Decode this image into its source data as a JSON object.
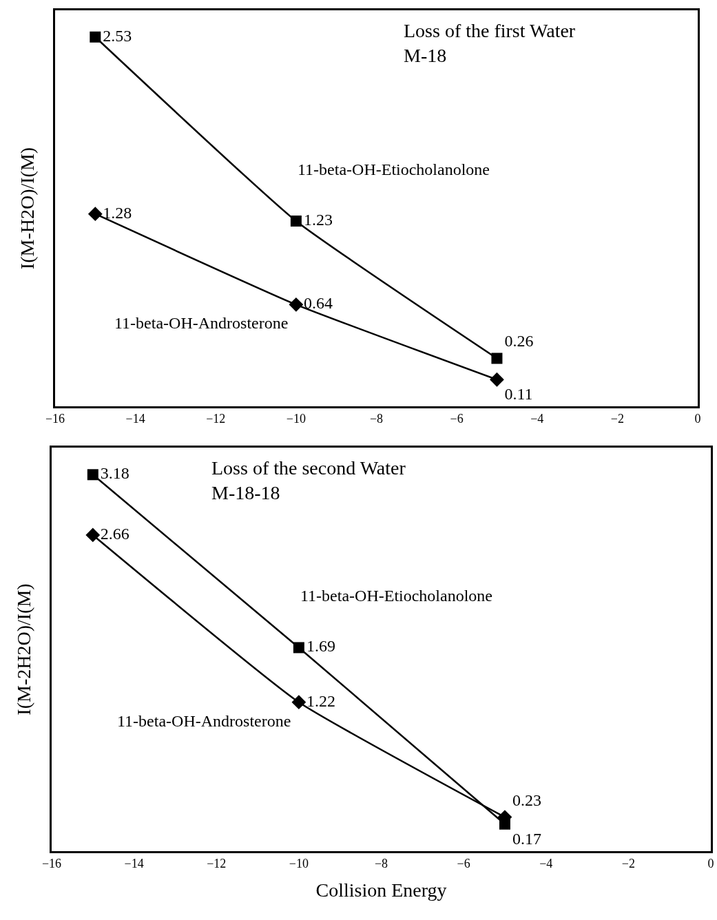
{
  "chart_data": [
    {
      "type": "line",
      "title": "Loss of the first Water",
      "subtitle": "M-18",
      "ylabel": "I(M-H2O)/I(M)",
      "x": [
        -15,
        -10,
        -5
      ],
      "xlim": [
        -16,
        0
      ],
      "xticks": [
        -16,
        -14,
        -12,
        -10,
        -8,
        -6,
        -4,
        -2,
        0
      ],
      "grid": false,
      "legend": false,
      "data_labels": true,
      "series": [
        {
          "name": "11-beta-OH-Etiocholanolone",
          "color": "#000000",
          "marker": "square",
          "values": [
            2.53,
            1.23,
            0.26
          ]
        },
        {
          "name": "11-beta-OH-Androsterone",
          "color": "#000000",
          "marker": "diamond",
          "values": [
            1.28,
            0.64,
            0.11
          ]
        }
      ]
    },
    {
      "type": "line",
      "title": "Loss of the second Water",
      "subtitle": "M-18-18",
      "xlabel": "Collision Energy",
      "ylabel": "I(M-2H2O)/I(M)",
      "x": [
        -15,
        -10,
        -5
      ],
      "xlim": [
        -16,
        0
      ],
      "xticks": [
        -16,
        -14,
        -12,
        -10,
        -8,
        -6,
        -4,
        -2,
        0
      ],
      "grid": false,
      "legend": false,
      "data_labels": true,
      "series": [
        {
          "name": "11-beta-OH-Etiocholanolone",
          "color": "#000000",
          "marker": "square",
          "values": [
            3.18,
            1.69,
            0.17
          ]
        },
        {
          "name": "11-beta-OH-Androsterone",
          "color": "#000000",
          "marker": "diamond",
          "values": [
            2.66,
            1.22,
            0.23
          ]
        }
      ]
    }
  ]
}
